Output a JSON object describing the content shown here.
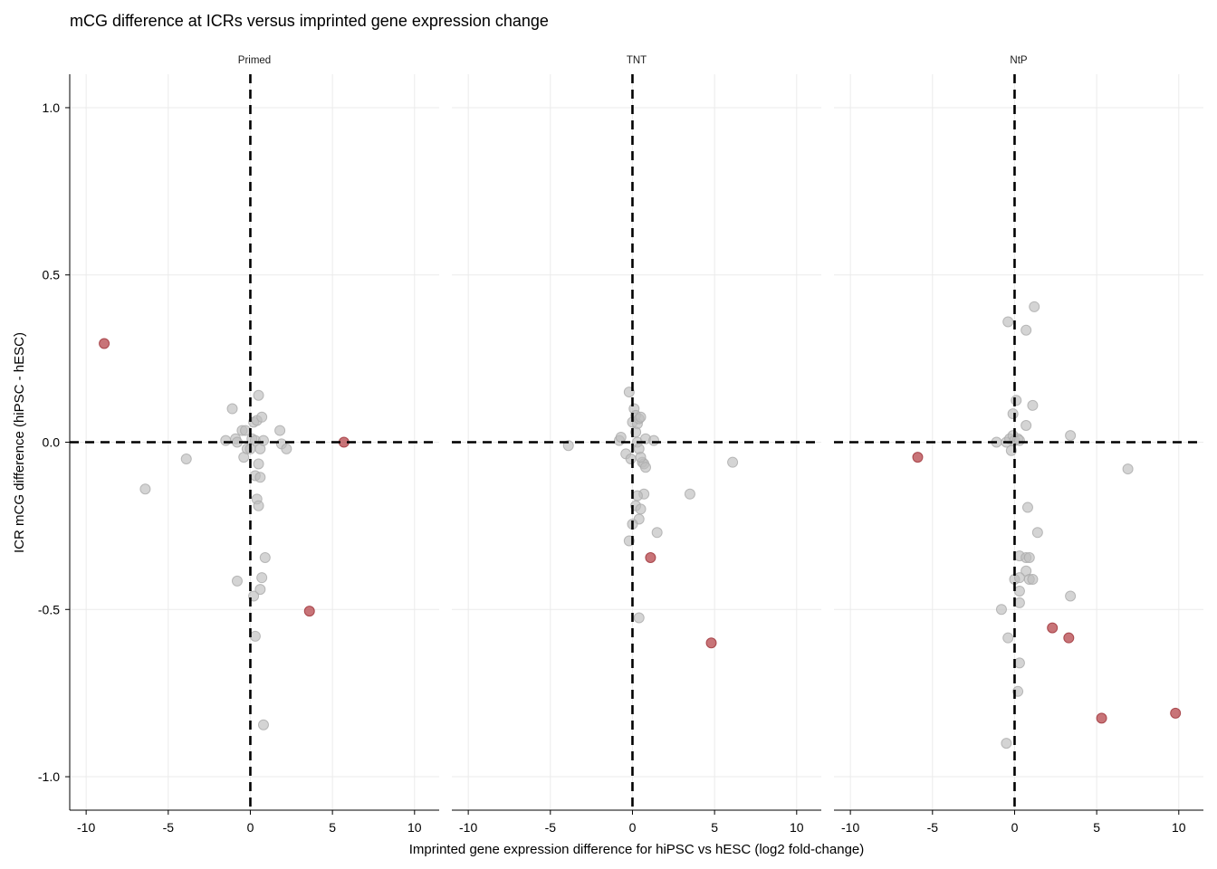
{
  "chart_data": {
    "type": "scatter",
    "title": "mCG difference at ICRs versus imprinted gene expression change",
    "xlabel": "Imprinted gene expression difference for hiPSC vs hESC (log2 fold-change)",
    "ylabel": "ICR mCG difference (hiPSC - hESC)",
    "xlim": [
      -11,
      11.5
    ],
    "ylim": [
      -1.1,
      1.1
    ],
    "x_ticks": [
      -10,
      -5,
      0,
      5,
      10
    ],
    "x_tick_labels": [
      "-10",
      "-5",
      "0",
      "5",
      "10"
    ],
    "y_ticks": [
      1.0,
      0.5,
      0.0,
      -0.5,
      -1.0
    ],
    "y_tick_labels": [
      "1.0",
      "0.5",
      "0.0",
      "-0.5",
      "-1.0"
    ],
    "reference_lines": {
      "x": 0,
      "y": 0,
      "style": "dashed"
    },
    "grid": true,
    "colors": {
      "highlight": "#b5454b",
      "other": "#bdbdbd"
    },
    "panels": [
      {
        "name": "Primed",
        "points": [
          {
            "x": -8.9,
            "y": 0.295,
            "hl": true
          },
          {
            "x": 5.7,
            "y": 0.0,
            "hl": true
          },
          {
            "x": 3.6,
            "y": -0.505,
            "hl": true
          },
          {
            "x": -6.4,
            "y": -0.14,
            "hl": false
          },
          {
            "x": -3.9,
            "y": -0.05,
            "hl": false
          },
          {
            "x": -1.5,
            "y": 0.005,
            "hl": false
          },
          {
            "x": -1.1,
            "y": 0.1,
            "hl": false
          },
          {
            "x": -0.9,
            "y": 0.01,
            "hl": false
          },
          {
            "x": -0.8,
            "y": 0.0,
            "hl": false
          },
          {
            "x": -0.5,
            "y": 0.035,
            "hl": false
          },
          {
            "x": -0.3,
            "y": 0.035,
            "hl": false
          },
          {
            "x": -0.4,
            "y": -0.045,
            "hl": false
          },
          {
            "x": -0.2,
            "y": -0.02,
            "hl": false
          },
          {
            "x": 0.0,
            "y": -0.02,
            "hl": false
          },
          {
            "x": 0.1,
            "y": 0.01,
            "hl": false
          },
          {
            "x": 0.2,
            "y": 0.06,
            "hl": false
          },
          {
            "x": 0.3,
            "y": 0.005,
            "hl": false
          },
          {
            "x": 0.4,
            "y": 0.065,
            "hl": false
          },
          {
            "x": 0.5,
            "y": 0.14,
            "hl": false
          },
          {
            "x": 0.6,
            "y": -0.02,
            "hl": false
          },
          {
            "x": 0.7,
            "y": 0.075,
            "hl": false
          },
          {
            "x": 0.8,
            "y": 0.005,
            "hl": false
          },
          {
            "x": 0.3,
            "y": -0.1,
            "hl": false
          },
          {
            "x": 0.5,
            "y": -0.065,
            "hl": false
          },
          {
            "x": 0.6,
            "y": -0.105,
            "hl": false
          },
          {
            "x": 1.8,
            "y": 0.035,
            "hl": false
          },
          {
            "x": 1.9,
            "y": -0.005,
            "hl": false
          },
          {
            "x": 2.2,
            "y": -0.02,
            "hl": false
          },
          {
            "x": 0.4,
            "y": -0.17,
            "hl": false
          },
          {
            "x": 0.5,
            "y": -0.19,
            "hl": false
          },
          {
            "x": -0.8,
            "y": -0.415,
            "hl": false
          },
          {
            "x": 0.9,
            "y": -0.345,
            "hl": false
          },
          {
            "x": 0.7,
            "y": -0.405,
            "hl": false
          },
          {
            "x": 0.6,
            "y": -0.44,
            "hl": false
          },
          {
            "x": 0.2,
            "y": -0.46,
            "hl": false
          },
          {
            "x": 0.3,
            "y": -0.58,
            "hl": false
          },
          {
            "x": 0.8,
            "y": -0.845,
            "hl": false
          }
        ]
      },
      {
        "name": "TNT",
        "points": [
          {
            "x": 1.1,
            "y": -0.345,
            "hl": true
          },
          {
            "x": 4.8,
            "y": -0.6,
            "hl": true
          },
          {
            "x": -3.9,
            "y": -0.01,
            "hl": false
          },
          {
            "x": -0.8,
            "y": 0.005,
            "hl": false
          },
          {
            "x": -0.7,
            "y": 0.015,
            "hl": false
          },
          {
            "x": -0.4,
            "y": -0.035,
            "hl": false
          },
          {
            "x": -0.2,
            "y": 0.15,
            "hl": false
          },
          {
            "x": -0.1,
            "y": -0.05,
            "hl": false
          },
          {
            "x": 0.0,
            "y": 0.06,
            "hl": false
          },
          {
            "x": 0.1,
            "y": 0.1,
            "hl": false
          },
          {
            "x": 0.2,
            "y": 0.08,
            "hl": false
          },
          {
            "x": 0.3,
            "y": 0.055,
            "hl": false
          },
          {
            "x": 0.4,
            "y": 0.07,
            "hl": false
          },
          {
            "x": 0.5,
            "y": 0.075,
            "hl": false
          },
          {
            "x": 0.2,
            "y": 0.03,
            "hl": false
          },
          {
            "x": 0.3,
            "y": 0.0,
            "hl": false
          },
          {
            "x": 0.4,
            "y": -0.02,
            "hl": false
          },
          {
            "x": 0.6,
            "y": -0.06,
            "hl": false
          },
          {
            "x": 0.7,
            "y": -0.065,
            "hl": false
          },
          {
            "x": 0.8,
            "y": 0.01,
            "hl": false
          },
          {
            "x": 1.3,
            "y": 0.005,
            "hl": false
          },
          {
            "x": 0.5,
            "y": -0.045,
            "hl": false
          },
          {
            "x": 0.8,
            "y": -0.075,
            "hl": false
          },
          {
            "x": 6.1,
            "y": -0.06,
            "hl": false
          },
          {
            "x": 3.5,
            "y": -0.155,
            "hl": false
          },
          {
            "x": 0.7,
            "y": -0.155,
            "hl": false
          },
          {
            "x": 0.3,
            "y": -0.16,
            "hl": false
          },
          {
            "x": 0.2,
            "y": -0.19,
            "hl": false
          },
          {
            "x": 0.5,
            "y": -0.2,
            "hl": false
          },
          {
            "x": 0.4,
            "y": -0.23,
            "hl": false
          },
          {
            "x": 0.0,
            "y": -0.245,
            "hl": false
          },
          {
            "x": 1.5,
            "y": -0.27,
            "hl": false
          },
          {
            "x": -0.2,
            "y": -0.295,
            "hl": false
          },
          {
            "x": 0.4,
            "y": -0.525,
            "hl": false
          }
        ]
      },
      {
        "name": "NtP",
        "points": [
          {
            "x": -5.9,
            "y": -0.045,
            "hl": true
          },
          {
            "x": 2.3,
            "y": -0.555,
            "hl": true
          },
          {
            "x": 3.3,
            "y": -0.585,
            "hl": true
          },
          {
            "x": 5.3,
            "y": -0.825,
            "hl": true
          },
          {
            "x": 9.8,
            "y": -0.81,
            "hl": true
          },
          {
            "x": 1.2,
            "y": 0.405,
            "hl": false
          },
          {
            "x": -0.4,
            "y": 0.36,
            "hl": false
          },
          {
            "x": 0.7,
            "y": 0.335,
            "hl": false
          },
          {
            "x": 0.1,
            "y": 0.125,
            "hl": false
          },
          {
            "x": 1.1,
            "y": 0.11,
            "hl": false
          },
          {
            "x": -0.1,
            "y": 0.085,
            "hl": false
          },
          {
            "x": 0.7,
            "y": 0.05,
            "hl": false
          },
          {
            "x": 3.4,
            "y": 0.02,
            "hl": false
          },
          {
            "x": -1.1,
            "y": 0.0,
            "hl": false
          },
          {
            "x": -0.5,
            "y": 0.0,
            "hl": false
          },
          {
            "x": -0.3,
            "y": 0.01,
            "hl": false
          },
          {
            "x": -0.1,
            "y": 0.02,
            "hl": false
          },
          {
            "x": 0.0,
            "y": 0.005,
            "hl": false
          },
          {
            "x": 0.2,
            "y": 0.01,
            "hl": false
          },
          {
            "x": 0.3,
            "y": 0.005,
            "hl": false
          },
          {
            "x": -0.2,
            "y": -0.025,
            "hl": false
          },
          {
            "x": 6.9,
            "y": -0.08,
            "hl": false
          },
          {
            "x": 0.8,
            "y": -0.195,
            "hl": false
          },
          {
            "x": 1.4,
            "y": -0.27,
            "hl": false
          },
          {
            "x": 0.3,
            "y": -0.34,
            "hl": false
          },
          {
            "x": 0.7,
            "y": -0.345,
            "hl": false
          },
          {
            "x": 0.9,
            "y": -0.345,
            "hl": false
          },
          {
            "x": 0.7,
            "y": -0.385,
            "hl": false
          },
          {
            "x": 0.0,
            "y": -0.41,
            "hl": false
          },
          {
            "x": 0.3,
            "y": -0.405,
            "hl": false
          },
          {
            "x": 0.9,
            "y": -0.41,
            "hl": false
          },
          {
            "x": 1.1,
            "y": -0.41,
            "hl": false
          },
          {
            "x": 0.3,
            "y": -0.445,
            "hl": false
          },
          {
            "x": 3.4,
            "y": -0.46,
            "hl": false
          },
          {
            "x": 0.3,
            "y": -0.48,
            "hl": false
          },
          {
            "x": -0.8,
            "y": -0.5,
            "hl": false
          },
          {
            "x": -0.4,
            "y": -0.585,
            "hl": false
          },
          {
            "x": 0.3,
            "y": -0.66,
            "hl": false
          },
          {
            "x": 0.2,
            "y": -0.745,
            "hl": false
          },
          {
            "x": -0.5,
            "y": -0.9,
            "hl": false
          }
        ]
      }
    ]
  }
}
